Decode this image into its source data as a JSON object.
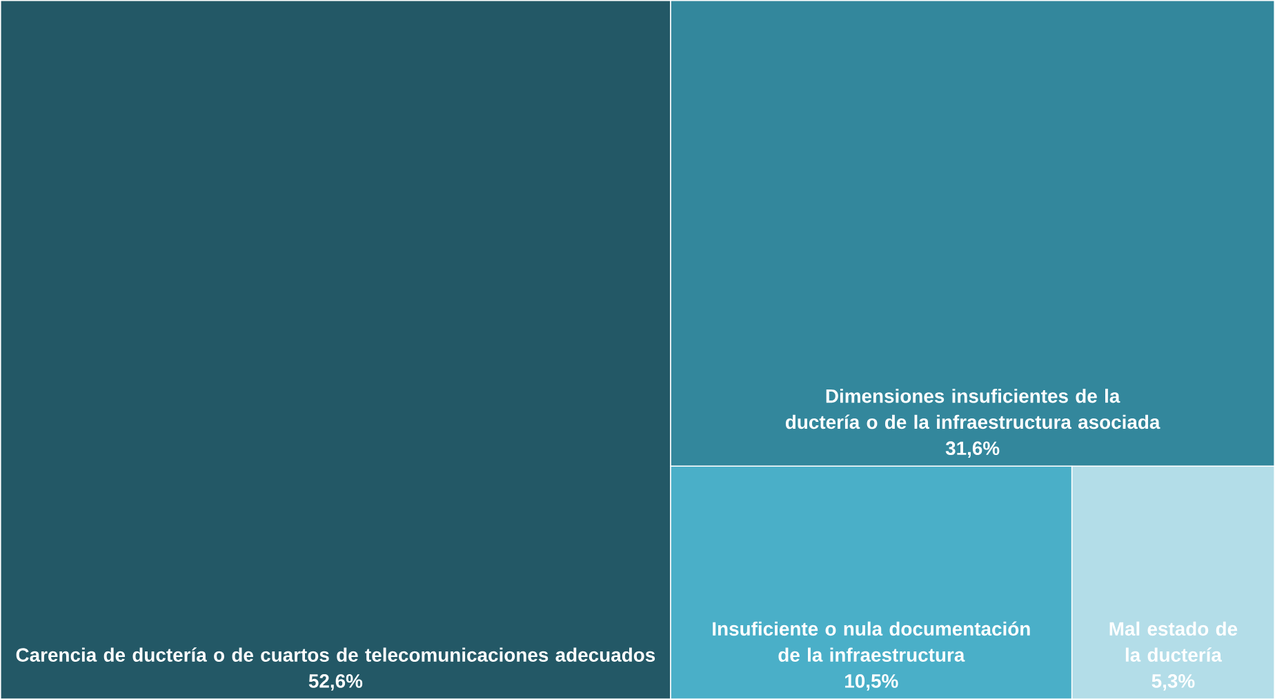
{
  "chart_data": {
    "type": "other",
    "categories": [
      "Carencia de ductería o de cuartos de telecomunicaciones adecuados",
      "Dimensiones insuficientes de la ductería o de la infraestructura asociada",
      "Insuficiente o nula documentación de la infraestructura",
      "Mal estado de la ductería"
    ],
    "values": [
      52.6,
      31.6,
      10.5,
      5.3
    ],
    "value_labels": [
      "52,6%",
      "31,6%",
      "10,5%",
      "5,3%"
    ],
    "colors": [
      "#235866",
      "#33879c",
      "#4aafc8",
      "#b3dde8"
    ]
  }
}
